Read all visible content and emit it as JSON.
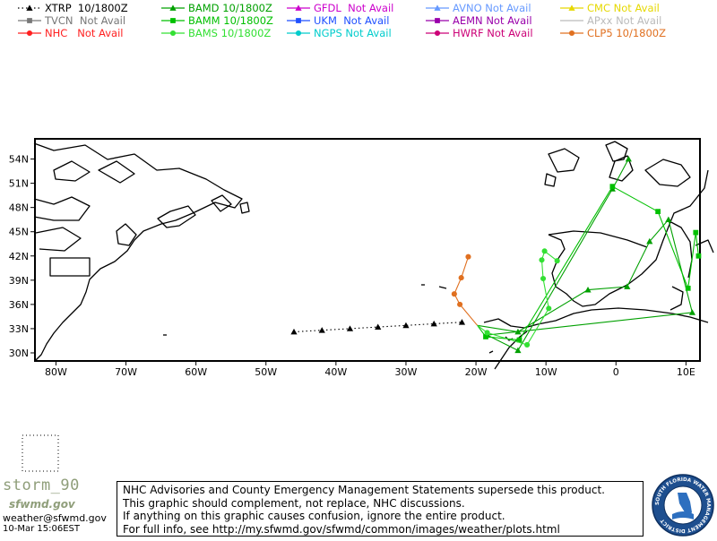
{
  "legend": [
    {
      "label": "XTRP  10/1800Z",
      "color": "#000000",
      "marker": "triangle",
      "line": "dotted"
    },
    {
      "label": "BAMD 10/1800Z",
      "color": "#00a000",
      "marker": "triangle",
      "line": "solid"
    },
    {
      "label": "GFDL  Not Avail",
      "color": "#cc00cc",
      "marker": "triangle",
      "line": "solid"
    },
    {
      "label": "AVNO Not Avail",
      "color": "#6699ff",
      "marker": "triangle",
      "line": "solid"
    },
    {
      "label": "CMC Not Avail",
      "color": "#e6d800",
      "marker": "triangle",
      "line": "solid"
    },
    {
      "label": "TVCN  Not Avail",
      "color": "#777777",
      "marker": "square",
      "line": "solid"
    },
    {
      "label": "BAMM 10/1800Z",
      "color": "#00c000",
      "marker": "square",
      "line": "solid"
    },
    {
      "label": "UKM  Not Avail",
      "color": "#1f4fff",
      "marker": "square",
      "line": "solid"
    },
    {
      "label": "AEMN Not Avail",
      "color": "#9900aa",
      "marker": "square",
      "line": "solid"
    },
    {
      "label": "APxx Not Avail",
      "color": "#bbbbbb",
      "marker": "none",
      "line": "solid"
    },
    {
      "label": "NHC   Not Avail",
      "color": "#ff2020",
      "marker": "circle",
      "line": "solid"
    },
    {
      "label": "BAMS 10/1800Z",
      "color": "#33e033",
      "marker": "circle",
      "line": "solid"
    },
    {
      "label": "NGPS Not Avail",
      "color": "#00cccc",
      "marker": "circle",
      "line": "solid"
    },
    {
      "label": "HWRF Not Avail",
      "color": "#cc0077",
      "marker": "circle",
      "line": "solid"
    },
    {
      "label": "CLP5 10/1800Z",
      "color": "#e07020",
      "marker": "circle",
      "line": "solid"
    }
  ],
  "map": {
    "lon_labels": [
      "80W",
      "70W",
      "60W",
      "50W",
      "40W",
      "30W",
      "20W",
      "10W",
      "0",
      "10E"
    ],
    "lat_labels": [
      "54N",
      "51N",
      "48N",
      "45N",
      "42N",
      "39N",
      "36N",
      "33N",
      "30N"
    ],
    "lon_range": [
      -83,
      12
    ],
    "lat_range": [
      29,
      56.5
    ],
    "tracks": [
      {
        "name": "XTRP",
        "color": "#000000",
        "marker": "triangle",
        "dashed": true,
        "points": [
          [
            -46,
            32.6
          ],
          [
            -42,
            32.8
          ],
          [
            -38,
            33.0
          ],
          [
            -34,
            33.2
          ],
          [
            -30,
            33.4
          ],
          [
            -26,
            33.6
          ],
          [
            -22,
            33.8
          ]
        ]
      },
      {
        "name": "CLP5",
        "color": "#e07020",
        "marker": "circle",
        "dashed": false,
        "points": [
          [
            -19.8,
            33.4
          ],
          [
            -22.3,
            36.0
          ],
          [
            -23.1,
            37.3
          ],
          [
            -22.1,
            39.3
          ],
          [
            -21.1,
            41.9
          ]
        ]
      },
      {
        "name": "BAMD",
        "color": "#00a000",
        "marker": "triangle",
        "dashed": false,
        "points": [
          [
            -19.8,
            33.4
          ],
          [
            -14,
            32.6
          ],
          [
            -4,
            37.8
          ],
          [
            1.6,
            38.2
          ],
          [
            4.8,
            43.8
          ],
          [
            7.5,
            46.5
          ],
          [
            10.9,
            35.0
          ],
          [
            -18.4,
            32.2
          ],
          [
            -14,
            30.3
          ],
          [
            -0.5,
            50.3
          ],
          [
            1.8,
            54.0
          ]
        ]
      },
      {
        "name": "BAMM",
        "color": "#00c000",
        "marker": "square",
        "dashed": false,
        "points": [
          [
            -19.8,
            33.4
          ],
          [
            -18.6,
            32.0
          ],
          [
            -13.8,
            31.6
          ],
          [
            -0.5,
            50.6
          ],
          [
            6,
            47.5
          ],
          [
            10.3,
            38.0
          ],
          [
            11.4,
            44.9
          ],
          [
            11.8,
            42.0
          ]
        ]
      },
      {
        "name": "BAMS",
        "color": "#33e033",
        "marker": "circle",
        "dashed": false,
        "points": [
          [
            -19.8,
            33.4
          ],
          [
            -18.4,
            32.5
          ],
          [
            -12.7,
            31.0
          ],
          [
            -9.6,
            35.5
          ],
          [
            -10.4,
            39.2
          ],
          [
            -10.6,
            41.5
          ],
          [
            -10.2,
            42.6
          ],
          [
            -8.4,
            41.4
          ]
        ]
      }
    ]
  },
  "footer": {
    "storm_name": "storm_90",
    "storm_sub": "sfwmd.gov",
    "email": "weather@sfwmd.gov",
    "timestamp": "10-Mar 15:06EST",
    "disclaimer": [
      "NHC Advisories and County Emergency Management Statements supersede this product.",
      "This graphic should complement, not replace, NHC discussions.",
      "If anything on this graphic causes confusion, ignore the entire product.",
      "For full info, see  http://my.sfwmd.gov/sfwmd/common/images/weather/plots.html"
    ],
    "seal_text": "SOUTH FLORIDA WATER MANAGEMENT DISTRICT"
  }
}
